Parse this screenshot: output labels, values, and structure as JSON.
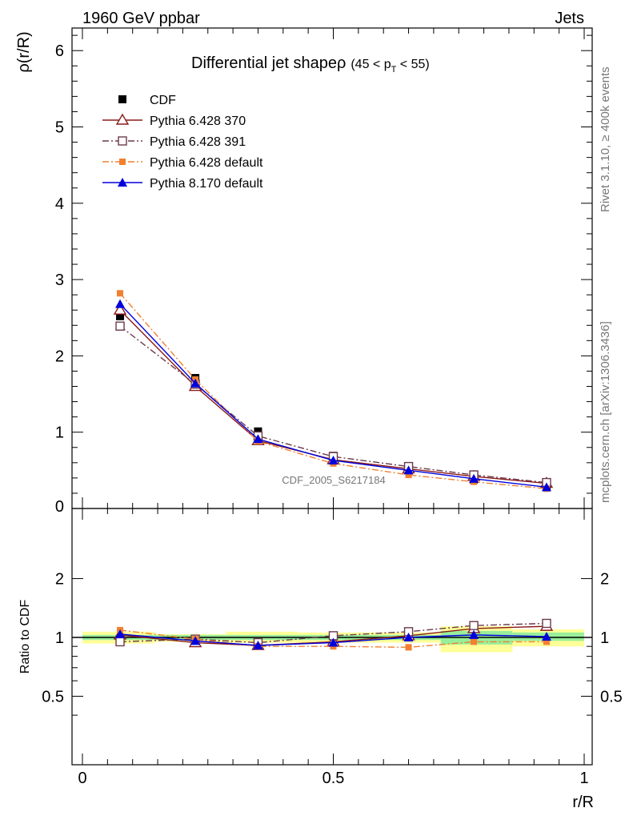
{
  "header": {
    "left": "1960 GeV ppbar",
    "right": "Jets"
  },
  "side_text": {
    "upper": "Rivet 3.1.10, ≥ 400k events",
    "lower": "mcplots.cern.ch [arXiv:1306.3436]"
  },
  "watermark": "CDF_2005_S6217184",
  "chart_data": [
    {
      "type": "line",
      "title": "Differential jet shapeρ",
      "title_range": {
        "pre": "(45 < p",
        "sub": "T",
        "post": " < 55)"
      },
      "ylabel": "ρ(r/R)",
      "xlim": [
        0,
        1
      ],
      "ylim": [
        0,
        6.3
      ],
      "yticks": [
        1,
        2,
        3,
        4,
        5,
        6
      ],
      "ytick_labels": [
        "1",
        "2",
        "3",
        "4",
        "5",
        "6"
      ],
      "ytick_zero_label": "0",
      "x": [
        0.075,
        0.225,
        0.35,
        0.5,
        0.65,
        0.78,
        0.925
      ],
      "legend_position": "top-left",
      "series": [
        {
          "name": "CDF",
          "color": "#000000",
          "marker": "square-filled",
          "line": "none",
          "values": [
            2.52,
            1.71,
            1.01,
            0.69,
            0.51,
            0.38,
            0.28
          ]
        },
        {
          "name": "Pythia 6.428 370",
          "color": "#8b1a1a",
          "marker": "triangle-open",
          "line": "solid",
          "values": [
            2.6,
            1.6,
            0.89,
            0.64,
            0.52,
            0.42,
            0.33
          ]
        },
        {
          "name": "Pythia 6.428 391",
          "color": "#6b3a4a",
          "marker": "square-open",
          "line": "dashdot",
          "values": [
            2.39,
            1.63,
            0.95,
            0.68,
            0.55,
            0.44,
            0.34
          ]
        },
        {
          "name": "Pythia 6.428 default",
          "color": "#f28030",
          "marker": "square-filled-small",
          "line": "dashdot",
          "values": [
            2.82,
            1.69,
            0.88,
            0.59,
            0.44,
            0.35,
            0.26
          ]
        },
        {
          "name": "Pythia 8.170 default",
          "color": "#0000dd",
          "marker": "triangle-filled",
          "line": "solid",
          "values": [
            2.68,
            1.64,
            0.91,
            0.63,
            0.5,
            0.39,
            0.28
          ]
        }
      ]
    },
    {
      "type": "line",
      "ylabel": "Ratio to CDF",
      "xlabel": "r/R",
      "xlim": [
        0,
        1
      ],
      "ylim": [
        0.35,
        2.35
      ],
      "yticks": [
        0.5,
        1,
        2
      ],
      "ytick_labels": [
        "0.5",
        "1",
        "2"
      ],
      "xticks": [
        0,
        0.5,
        1
      ],
      "xtick_labels": [
        "0",
        "0.5",
        "1"
      ],
      "x": [
        0.075,
        0.225,
        0.35,
        0.5,
        0.65,
        0.78,
        0.925
      ],
      "uncertainty_bins": [
        {
          "x0": 0.0,
          "x1": 0.143,
          "yellow": [
            0.93,
            1.07
          ],
          "green": [
            0.97,
            1.03
          ]
        },
        {
          "x0": 0.143,
          "x1": 0.286,
          "yellow": [
            0.95,
            1.04
          ],
          "green": [
            0.97,
            1.03
          ]
        },
        {
          "x0": 0.286,
          "x1": 0.429,
          "yellow": [
            0.94,
            1.07
          ],
          "green": [
            0.97,
            1.03
          ]
        },
        {
          "x0": 0.429,
          "x1": 0.571,
          "yellow": [
            0.94,
            1.06
          ],
          "green": [
            0.97,
            1.03
          ]
        },
        {
          "x0": 0.571,
          "x1": 0.714,
          "yellow": [
            0.94,
            1.06
          ],
          "green": [
            0.97,
            1.03
          ]
        },
        {
          "x0": 0.714,
          "x1": 0.857,
          "yellow": [
            0.84,
            1.14
          ],
          "green": [
            0.92,
            1.08
          ]
        },
        {
          "x0": 0.857,
          "x1": 1.0,
          "yellow": [
            0.9,
            1.1
          ],
          "green": [
            0.96,
            1.06
          ]
        }
      ],
      "series": [
        {
          "name": "Pythia 6.428 370",
          "color": "#8b1a1a",
          "marker": "triangle-open",
          "line": "solid",
          "values": [
            1.03,
            0.94,
            0.91,
            0.95,
            1.02,
            1.11,
            1.14
          ]
        },
        {
          "name": "Pythia 6.428 391",
          "color": "#6b3a4a",
          "marker": "square-open",
          "line": "dashdot",
          "values": [
            0.95,
            0.98,
            0.94,
            1.02,
            1.07,
            1.15,
            1.18
          ]
        },
        {
          "name": "Pythia 6.428 default",
          "color": "#f28030",
          "marker": "square-filled-small",
          "line": "dashdot",
          "values": [
            1.09,
            0.98,
            0.9,
            0.9,
            0.89,
            0.95,
            0.95
          ]
        },
        {
          "name": "Pythia 8.170 default",
          "color": "#0000dd",
          "marker": "triangle-filled",
          "line": "solid",
          "values": [
            1.04,
            0.96,
            0.91,
            0.94,
            1.0,
            1.03,
            1.01
          ]
        }
      ]
    }
  ]
}
